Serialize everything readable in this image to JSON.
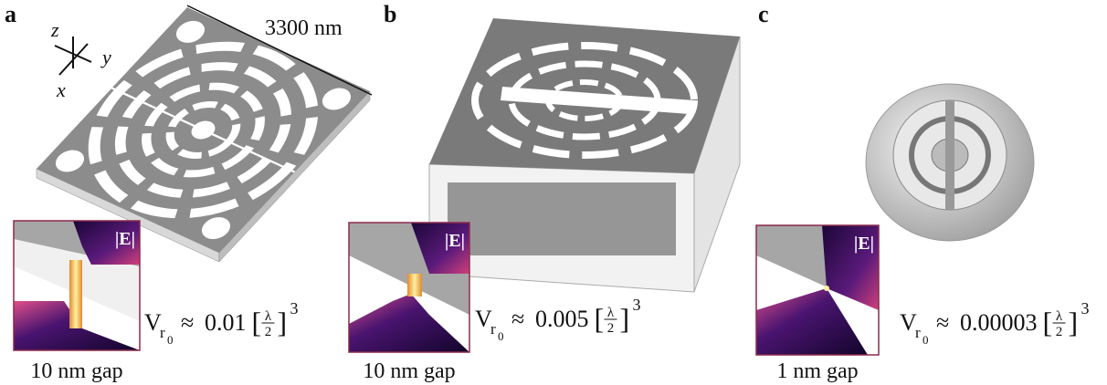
{
  "panels": [
    {
      "label": "a",
      "scale_bar": "3300 nm",
      "axes": [
        "z",
        "y",
        "x"
      ],
      "inset": "|E|",
      "value": "0.01",
      "caption": "10 nm gap"
    },
    {
      "label": "b",
      "inset": "|E|",
      "value": "0.005",
      "caption": "10 nm gap"
    },
    {
      "label": "c",
      "inset": "|E|",
      "value": "0.00003",
      "caption": "1 nm gap"
    }
  ],
  "formula": {
    "symbol": "V",
    "subscript": "r",
    "subsubscript": "0",
    "approx": "≈",
    "left_bracket": "[",
    "numerator": "λ",
    "denominator": "2",
    "right_bracket": "]",
    "exponent": "3"
  }
}
